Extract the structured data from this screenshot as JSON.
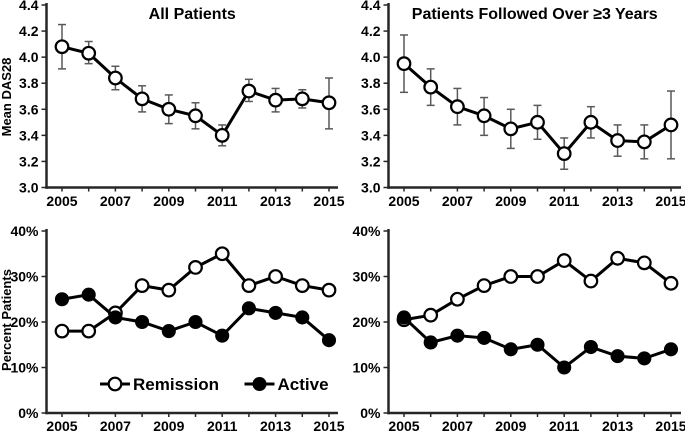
{
  "figure": {
    "description": "Four-panel line chart figure of DAS28 disease activity over time"
  },
  "colors": {
    "line": "#000000",
    "marker_open_fill": "#ffffff",
    "error_bar": "#595959",
    "axis": "#262626",
    "background": "#ffffff"
  },
  "chart_data": [
    {
      "type": "line",
      "title": "All Patients",
      "ylabel": "Mean DAS28",
      "x": [
        2005,
        2006,
        2007,
        2008,
        2009,
        2010,
        2011,
        2012,
        2013,
        2014,
        2015
      ],
      "xtick_labels": [
        "2005",
        "2007",
        "2009",
        "2011",
        "2013",
        "2015"
      ],
      "ylim": [
        3.0,
        4.4
      ],
      "ytick_labels": [
        "3.0",
        "3.2",
        "3.4",
        "3.6",
        "3.8",
        "4.0",
        "4.2",
        "4.4"
      ],
      "grid": false,
      "legend": {
        "show": false
      },
      "series": [
        {
          "name": "Mean DAS28",
          "marker": "open-circle",
          "values": [
            4.08,
            4.03,
            3.84,
            3.68,
            3.6,
            3.55,
            3.4,
            3.74,
            3.67,
            3.68,
            3.65
          ],
          "ci_low": [
            3.91,
            3.95,
            3.75,
            3.58,
            3.49,
            3.45,
            3.32,
            3.66,
            3.58,
            3.61,
            3.45
          ],
          "ci_high": [
            4.25,
            4.12,
            3.93,
            3.78,
            3.71,
            3.65,
            3.48,
            3.83,
            3.76,
            3.75,
            3.84
          ]
        }
      ]
    },
    {
      "type": "line",
      "title": "Patients Followed Over ≥3 Years",
      "ylabel": "",
      "x": [
        2005,
        2006,
        2007,
        2008,
        2009,
        2010,
        2011,
        2012,
        2013,
        2014,
        2015
      ],
      "xtick_labels": [
        "2005",
        "2007",
        "2009",
        "2011",
        "2013",
        "2015"
      ],
      "ylim": [
        3.0,
        4.4
      ],
      "ytick_labels": [
        "3.0",
        "3.2",
        "3.4",
        "3.6",
        "3.8",
        "4.0",
        "4.2",
        "4.4"
      ],
      "grid": false,
      "legend": {
        "show": false
      },
      "series": [
        {
          "name": "Mean DAS28",
          "marker": "open-circle",
          "values": [
            3.95,
            3.77,
            3.62,
            3.55,
            3.45,
            3.5,
            3.26,
            3.5,
            3.36,
            3.35,
            3.48
          ],
          "ci_low": [
            3.73,
            3.63,
            3.48,
            3.4,
            3.3,
            3.37,
            3.14,
            3.38,
            3.24,
            3.22,
            3.22
          ],
          "ci_high": [
            4.17,
            3.91,
            3.76,
            3.69,
            3.6,
            3.63,
            3.38,
            3.62,
            3.48,
            3.48,
            3.74
          ]
        }
      ]
    },
    {
      "type": "line",
      "title": "",
      "ylabel": "Percent Patients",
      "x": [
        2005,
        2006,
        2007,
        2008,
        2009,
        2010,
        2011,
        2012,
        2013,
        2014,
        2015
      ],
      "xtick_labels": [
        "2005",
        "2007",
        "2009",
        "2011",
        "2013",
        "2015"
      ],
      "ylim": [
        0,
        40
      ],
      "ytick_labels": [
        "0%",
        "10%",
        "20%",
        "30%",
        "40%"
      ],
      "grid": false,
      "legend": {
        "show": true,
        "position": "inside-bottom",
        "entries": [
          "Remission",
          "Active"
        ]
      },
      "series": [
        {
          "name": "Remission",
          "marker": "open-circle",
          "values": [
            18,
            18,
            22,
            28,
            27,
            32,
            35,
            28,
            30,
            28,
            27
          ]
        },
        {
          "name": "Active",
          "marker": "filled-circle",
          "values": [
            25,
            26,
            21,
            20,
            18,
            20,
            17,
            23,
            22,
            21,
            16
          ]
        }
      ]
    },
    {
      "type": "line",
      "title": "",
      "ylabel": "",
      "x": [
        2005,
        2006,
        2007,
        2008,
        2009,
        2010,
        2011,
        2012,
        2013,
        2014,
        2015
      ],
      "xtick_labels": [
        "2005",
        "2007",
        "2009",
        "2011",
        "2013",
        "2015"
      ],
      "ylim": [
        0,
        40
      ],
      "ytick_labels": [
        "0%",
        "10%",
        "20%",
        "30%",
        "40%"
      ],
      "grid": false,
      "legend": {
        "show": false
      },
      "series": [
        {
          "name": "Remission",
          "marker": "open-circle",
          "values": [
            20.5,
            21.5,
            25,
            28,
            30,
            30,
            33.5,
            29,
            34,
            33,
            28.5
          ]
        },
        {
          "name": "Active",
          "marker": "filled-circle",
          "values": [
            21,
            15.5,
            17,
            16.5,
            14,
            15,
            10,
            14.5,
            12.5,
            12,
            14
          ]
        }
      ]
    }
  ]
}
